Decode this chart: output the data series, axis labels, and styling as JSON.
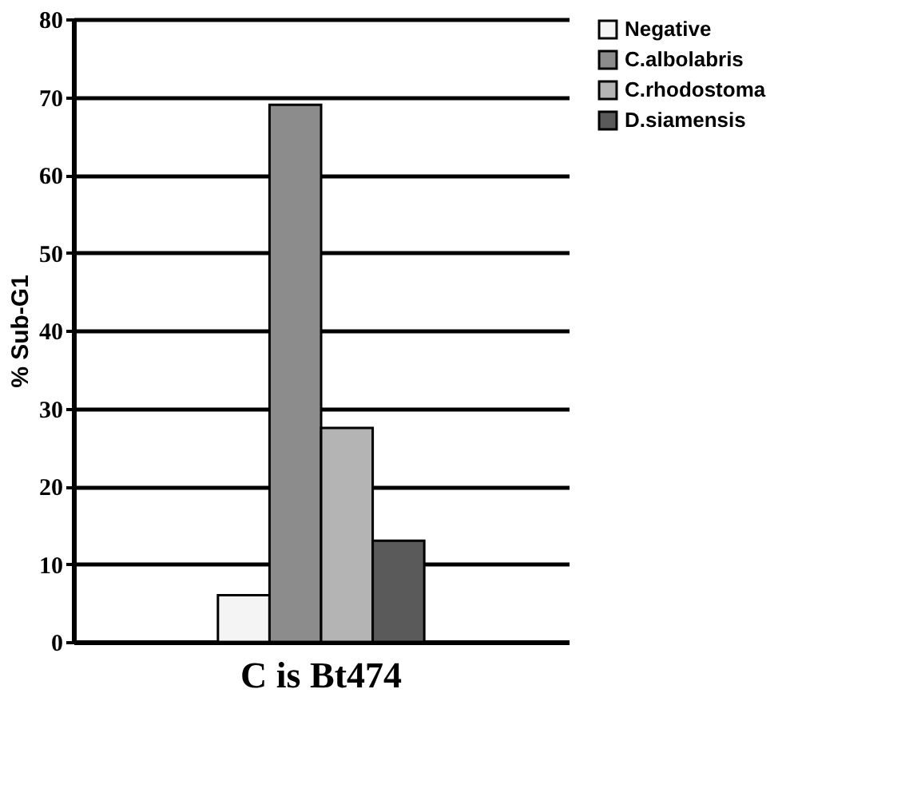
{
  "chart_data": {
    "type": "bar",
    "categories": [
      "C is Bt474"
    ],
    "ylabel": "% Sub-G1",
    "ylim": [
      0,
      80
    ],
    "yticks": [
      0,
      10,
      20,
      30,
      40,
      50,
      60,
      70,
      80
    ],
    "grid": "y",
    "legend": "right",
    "series": [
      {
        "name": "Negative",
        "color": "#f4f4f4",
        "values": [
          6
        ]
      },
      {
        "name": "C.albolabris",
        "color": "#8c8c8c",
        "values": [
          69
        ]
      },
      {
        "name": "C.rhodostoma",
        "color": "#b4b4b4",
        "values": [
          27.5
        ]
      },
      {
        "name": "D.siamensis",
        "color": "#5a5a5a",
        "values": [
          13
        ]
      }
    ]
  }
}
